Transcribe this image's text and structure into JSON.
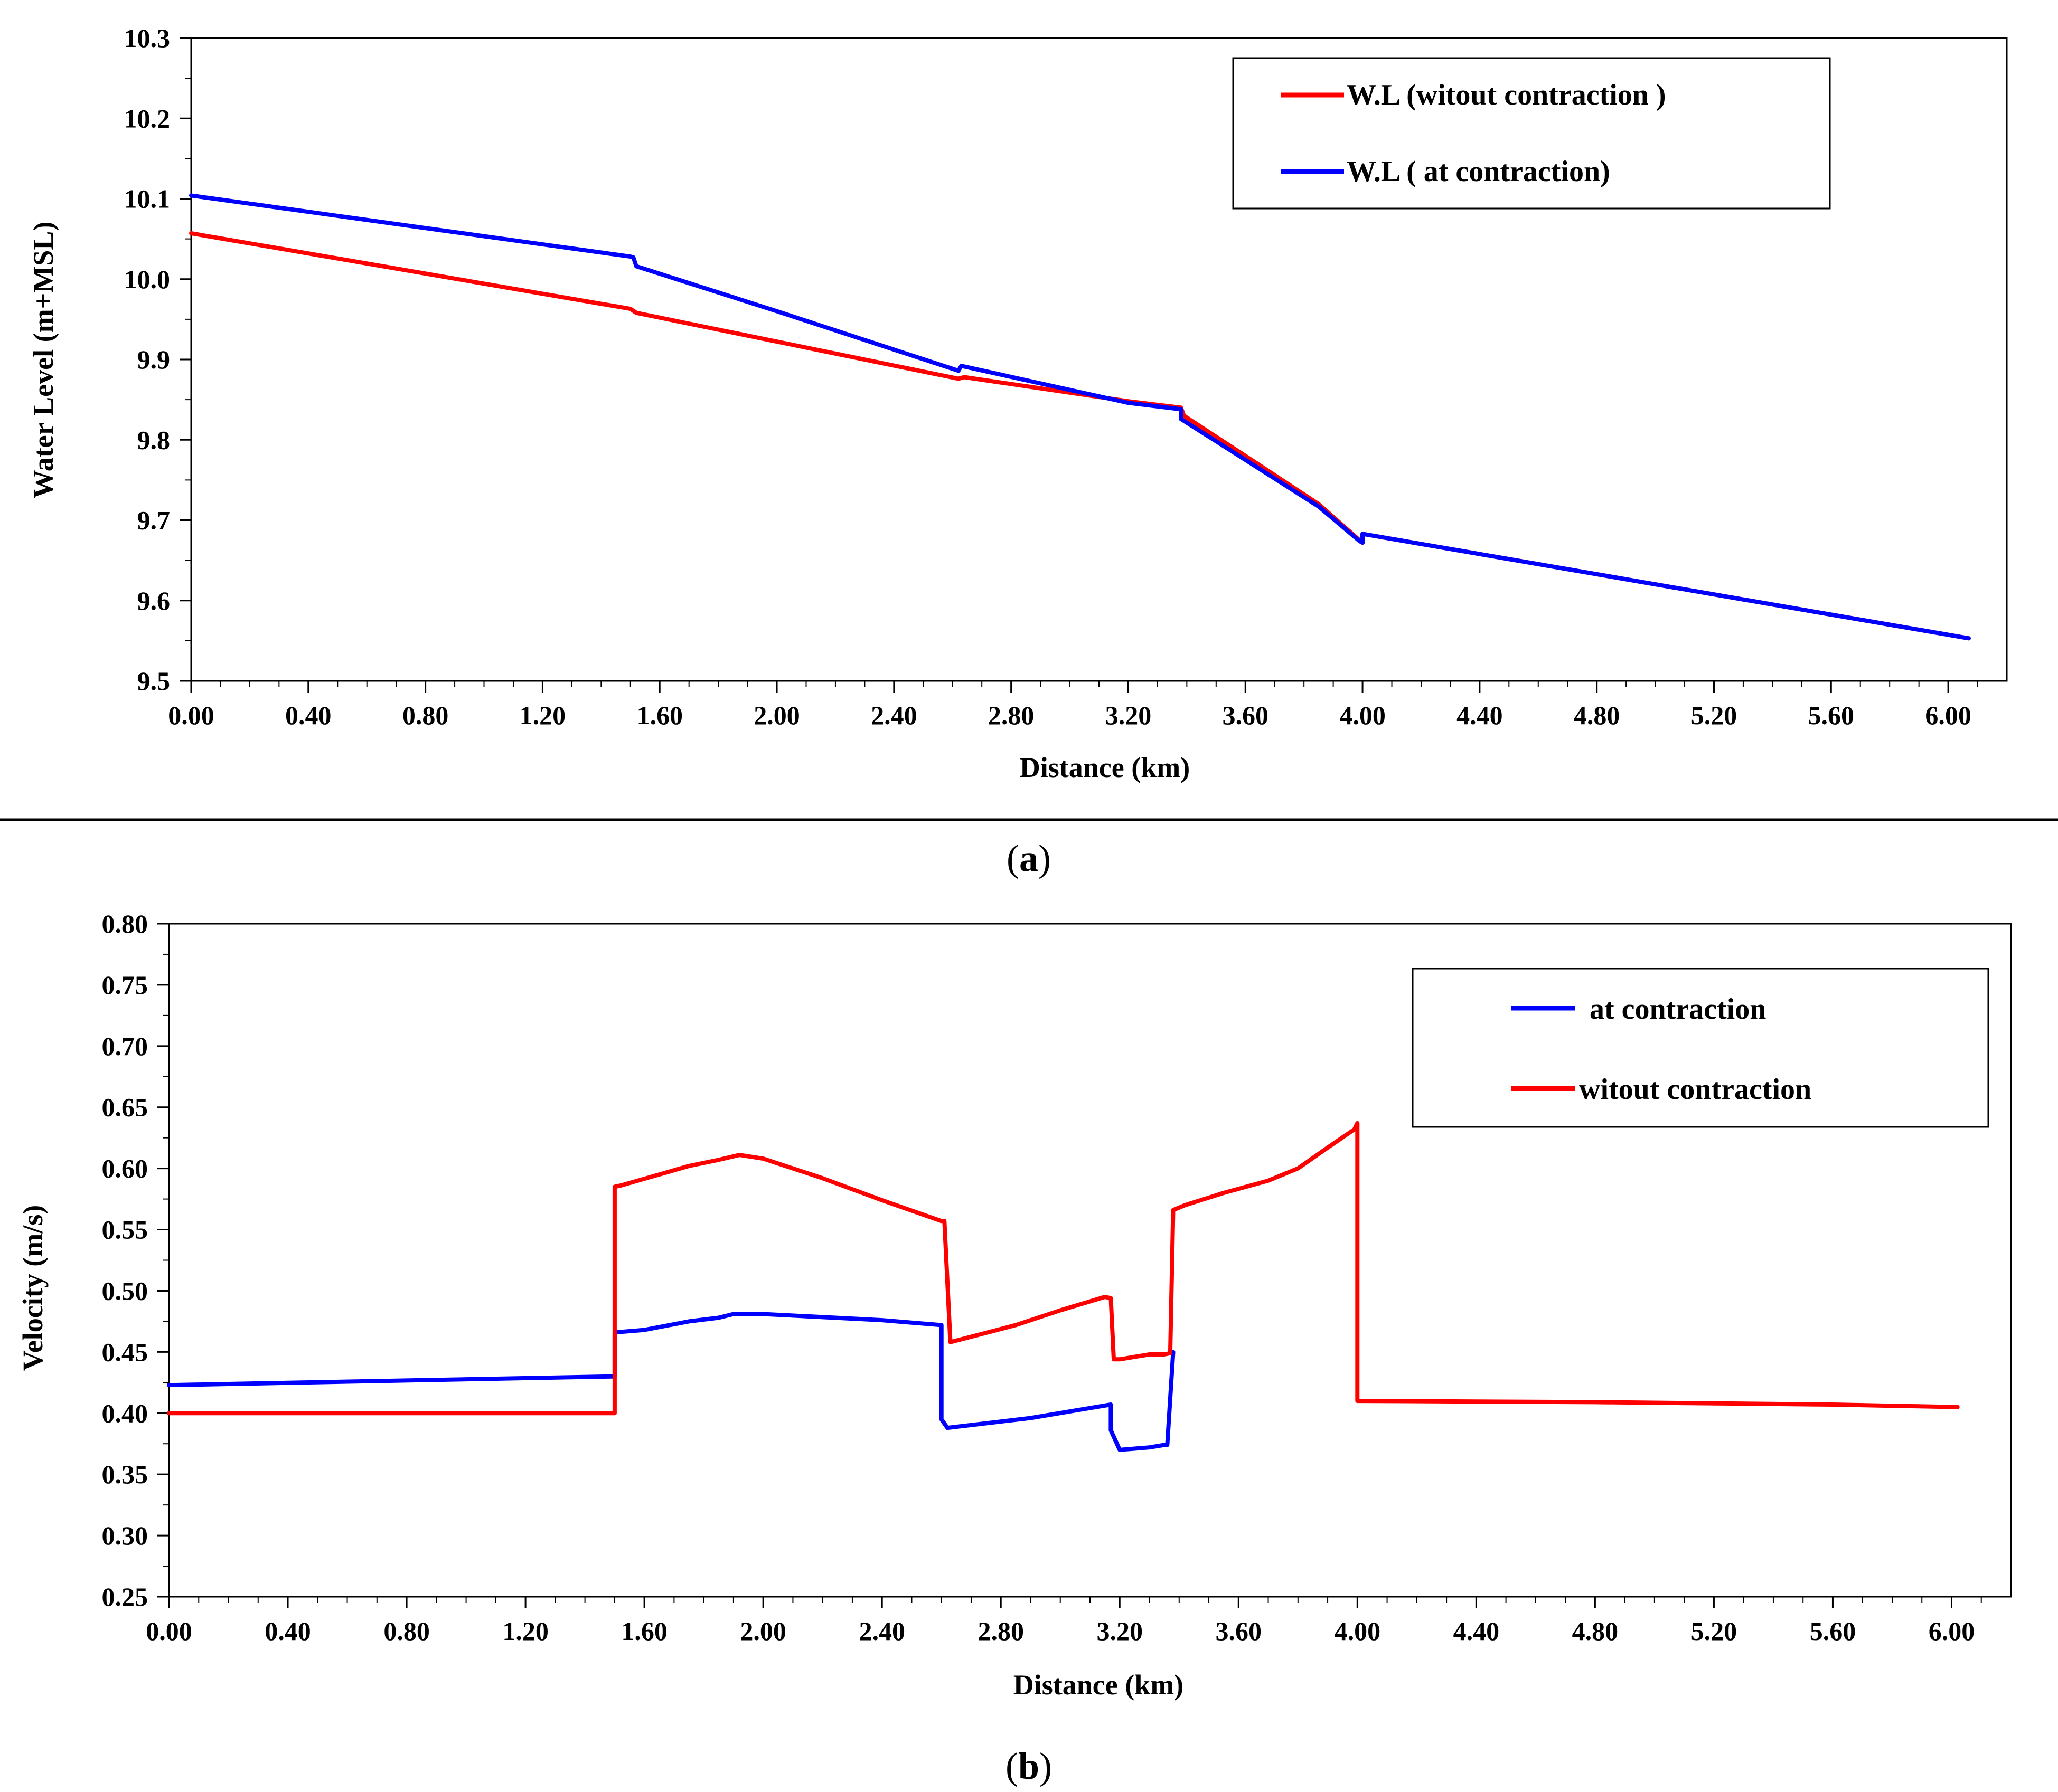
{
  "chart_data": [
    {
      "type": "line",
      "panel": "a",
      "caption_letter": "a",
      "title": "",
      "xlabel": "Distance (km)",
      "ylabel": "Water Level (m+MSL)",
      "xlim": [
        0,
        6.2
      ],
      "ylim": [
        9.5,
        10.3
      ],
      "x_ticks": [
        0,
        0.4,
        0.8,
        1.2,
        1.6,
        2.0,
        2.4,
        2.8,
        3.2,
        3.6,
        4.0,
        4.4,
        4.8,
        5.2,
        5.6,
        6.0
      ],
      "x_tick_labels": [
        "0.00",
        "0.40",
        "0.80",
        "1.20",
        "1.60",
        "2.00",
        "2.40",
        "2.80",
        "3.20",
        "3.60",
        "4.00",
        "4.40",
        "4.80",
        "5.20",
        "5.60",
        "6.00"
      ],
      "y_ticks": [
        9.5,
        9.6,
        9.7,
        9.8,
        9.9,
        10.0,
        10.1,
        10.2,
        10.3
      ],
      "y_tick_labels": [
        "9.5",
        "9.6",
        "9.7",
        "9.8",
        "9.9",
        "10.0",
        "10.1",
        "10.2",
        "10.3"
      ],
      "legend_position": "top-right",
      "series": [
        {
          "name": "W.L (witout contraction )",
          "color": "#ff0000",
          "x": [
            0.0,
            1.5,
            1.52,
            2.62,
            2.64,
            3.2,
            3.38,
            3.39,
            3.6,
            3.85,
            3.99,
            4.0,
            4.0,
            6.07
          ],
          "y": [
            10.057,
            9.963,
            9.958,
            9.876,
            9.878,
            9.848,
            9.84,
            9.83,
            9.78,
            9.72,
            9.675,
            9.672,
            9.683,
            9.553
          ]
        },
        {
          "name": "W.L ( at contraction)",
          "color": "#0000ff",
          "x": [
            0.0,
            1.5,
            1.51,
            1.52,
            2.0,
            2.62,
            2.63,
            3.2,
            3.38,
            3.38,
            3.6,
            3.85,
            3.99,
            4.0,
            4.0,
            6.07
          ],
          "y": [
            10.104,
            10.028,
            10.027,
            10.016,
            9.96,
            9.886,
            9.892,
            9.846,
            9.838,
            9.826,
            9.775,
            9.717,
            9.674,
            9.672,
            9.683,
            9.553
          ]
        }
      ]
    },
    {
      "type": "line",
      "panel": "b",
      "caption_letter": "b",
      "title": "",
      "xlabel": "Distance (km)",
      "ylabel": "Velocity (m/s)",
      "xlim": [
        0,
        6.2
      ],
      "ylim": [
        0.25,
        0.8
      ],
      "x_ticks": [
        0,
        0.4,
        0.8,
        1.2,
        1.6,
        2.0,
        2.4,
        2.8,
        3.2,
        3.6,
        4.0,
        4.4,
        4.8,
        5.2,
        5.6,
        6.0
      ],
      "x_tick_labels": [
        "0.00",
        "0.40",
        "0.80",
        "1.20",
        "1.60",
        "2.00",
        "2.40",
        "2.80",
        "3.20",
        "3.60",
        "4.00",
        "4.40",
        "4.80",
        "5.20",
        "5.60",
        "6.00"
      ],
      "y_ticks": [
        0.25,
        0.3,
        0.35,
        0.4,
        0.45,
        0.5,
        0.55,
        0.6,
        0.65,
        0.7,
        0.75,
        0.8
      ],
      "y_tick_labels": [
        "0.25",
        "0.30",
        "0.35",
        "0.40",
        "0.45",
        "0.50",
        "0.55",
        "0.60",
        "0.65",
        "0.70",
        "0.75",
        "0.80"
      ],
      "legend_position": "top-right",
      "series": [
        {
          "name": "at contraction",
          "color": "#0000ff",
          "x": [
            0.0,
            0.02,
            1.49,
            1.5,
            1.5,
            1.6,
            1.75,
            1.85,
            1.9,
            2.0,
            2.4,
            2.6,
            2.6,
            2.62,
            2.9,
            3.17,
            3.17,
            3.2,
            3.3,
            3.35,
            3.36,
            3.38
          ],
          "y": [
            0.423,
            0.423,
            0.43,
            0.43,
            0.466,
            0.468,
            0.475,
            0.478,
            0.481,
            0.481,
            0.476,
            0.472,
            0.395,
            0.388,
            0.396,
            0.407,
            0.386,
            0.37,
            0.372,
            0.374,
            0.374,
            0.45
          ]
        },
        {
          "name": "witout contraction",
          "color": "#ff0000",
          "x": [
            0.0,
            0.8,
            1.49,
            1.5,
            1.5,
            1.52,
            1.65,
            1.75,
            1.85,
            1.92,
            2.0,
            2.2,
            2.4,
            2.6,
            2.61,
            2.63,
            2.85,
            3.0,
            3.15,
            3.17,
            3.18,
            3.2,
            3.3,
            3.35,
            3.37,
            3.38,
            3.42,
            3.55,
            3.7,
            3.8,
            3.9,
            3.99,
            4.0,
            4.0,
            4.02,
            4.8,
            5.6,
            6.02
          ],
          "y": [
            0.4,
            0.4,
            0.4,
            0.4,
            0.585,
            0.586,
            0.595,
            0.602,
            0.607,
            0.611,
            0.608,
            0.592,
            0.574,
            0.557,
            0.557,
            0.458,
            0.472,
            0.484,
            0.495,
            0.494,
            0.444,
            0.444,
            0.448,
            0.448,
            0.449,
            0.566,
            0.57,
            0.58,
            0.59,
            0.6,
            0.617,
            0.632,
            0.637,
            0.41,
            0.41,
            0.409,
            0.407,
            0.405
          ]
        }
      ]
    }
  ]
}
